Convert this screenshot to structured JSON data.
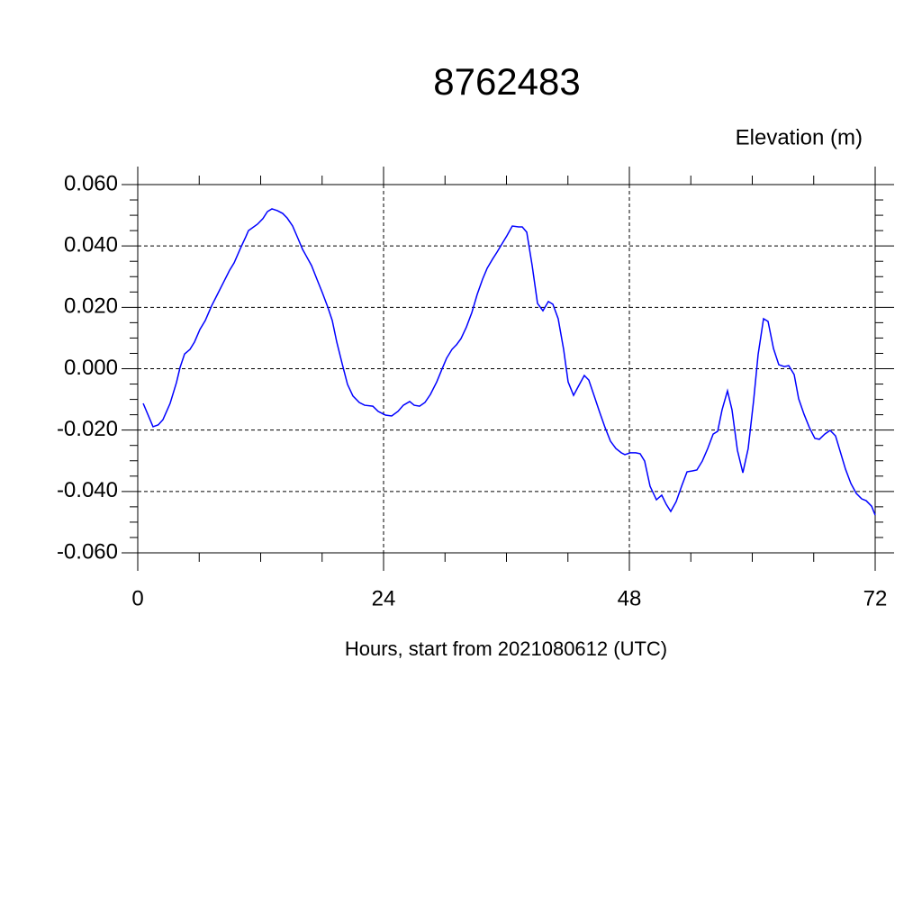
{
  "chart_data": {
    "type": "line",
    "title": "8762483",
    "ylabel": "Elevation (m)",
    "xlabel": "Hours, start from 2021080612 (UTC)",
    "color": "#0000ff",
    "grid": true,
    "xlim": [
      0,
      72
    ],
    "xticks": [
      0,
      24,
      48,
      72
    ],
    "ylim": [
      -0.06,
      0.06
    ],
    "yticks": [
      {
        "value": -0.06,
        "label": "-0.060"
      },
      {
        "value": -0.04,
        "label": "-0.040"
      },
      {
        "value": -0.02,
        "label": "-0.020"
      },
      {
        "value": 0,
        "label": "0.000"
      },
      {
        "value": 0.02,
        "label": "0.020"
      },
      {
        "value": 0.04,
        "label": "0.040"
      },
      {
        "value": 0.06,
        "label": "0.060"
      }
    ],
    "x": [
      0.53,
      1.49,
      2.0,
      2.46,
      3.16,
      3.78,
      4.13,
      4.57,
      5.1,
      5.54,
      6.07,
      6.59,
      7.2,
      7.82,
      8.35,
      8.97,
      9.41,
      10.02,
      10.55,
      10.81,
      11.69,
      12.22,
      12.66,
      13.1,
      13.63,
      14.15,
      14.59,
      15.12,
      15.65,
      16.09,
      16.44,
      16.97,
      17.49,
      18.02,
      18.55,
      18.99,
      19.43,
      19.96,
      20.48,
      21.01,
      21.63,
      22.15,
      22.95,
      23.47,
      24.18,
      24.79,
      25.41,
      25.93,
      26.55,
      26.99,
      27.52,
      28.04,
      28.57,
      29.19,
      29.71,
      30.15,
      30.68,
      31.12,
      31.56,
      32.09,
      32.62,
      33.14,
      33.67,
      34.11,
      34.64,
      35.08,
      35.6,
      36.04,
      36.57,
      37.19,
      37.54,
      37.98,
      38.51,
      39.03,
      39.56,
      40.09,
      40.53,
      41.05,
      41.58,
      42.02,
      42.55,
      43.08,
      43.6,
      44.04,
      44.57,
      45.1,
      45.63,
      46.15,
      46.68,
      47.21,
      47.56,
      48.09,
      48.62,
      49.05,
      49.49,
      50.02,
      50.64,
      51.16,
      51.6,
      52.04,
      52.57,
      53.1,
      53.63,
      54.15,
      54.59,
      55.12,
      55.65,
      56.18,
      56.62,
      57.05,
      57.58,
      58.02,
      58.55,
      59.08,
      59.6,
      60.13,
      60.57,
      61.1,
      61.54,
      62.07,
      62.59,
      63.12,
      63.56,
      64.09,
      64.53,
      65.05,
      65.58,
      66.11,
      66.55,
      67.08,
      67.6,
      68.13,
      68.57,
      69.1,
      69.63,
      70.15,
      70.68,
      71.12,
      71.65,
      72.0
    ],
    "values": [
      -0.0113,
      -0.0189,
      -0.0183,
      -0.0166,
      -0.0113,
      -0.0045,
      0.0004,
      0.0048,
      0.0063,
      0.0087,
      0.0128,
      0.0157,
      0.0204,
      0.0245,
      0.028,
      0.0321,
      0.0345,
      0.0392,
      0.043,
      0.045,
      0.0471,
      0.0489,
      0.0512,
      0.0521,
      0.0515,
      0.0506,
      0.0491,
      0.0465,
      0.0424,
      0.0389,
      0.0368,
      0.0336,
      0.0292,
      0.0248,
      0.0201,
      0.0157,
      0.0087,
      0.0016,
      -0.0051,
      -0.0089,
      -0.011,
      -0.0119,
      -0.0122,
      -0.0139,
      -0.0151,
      -0.0154,
      -0.0139,
      -0.0119,
      -0.0107,
      -0.0119,
      -0.0122,
      -0.011,
      -0.0084,
      -0.0043,
      -0.0001,
      0.0034,
      0.0063,
      0.0078,
      0.0098,
      0.0136,
      0.0183,
      0.0242,
      0.0292,
      0.0327,
      0.0357,
      0.038,
      0.0409,
      0.0433,
      0.0465,
      0.0462,
      0.0462,
      0.0445,
      0.0336,
      0.0213,
      0.0189,
      0.0219,
      0.021,
      0.0163,
      0.0063,
      -0.0043,
      -0.0087,
      -0.0054,
      -0.0022,
      -0.0037,
      -0.0089,
      -0.0142,
      -0.0192,
      -0.0236,
      -0.026,
      -0.0274,
      -0.028,
      -0.0274,
      -0.0274,
      -0.0277,
      -0.0301,
      -0.0383,
      -0.0427,
      -0.0412,
      -0.0442,
      -0.0465,
      -0.0433,
      -0.0383,
      -0.0336,
      -0.0333,
      -0.033,
      -0.0301,
      -0.026,
      -0.0213,
      -0.0204,
      -0.0134,
      -0.0072,
      -0.0134,
      -0.0266,
      -0.0339,
      -0.026,
      -0.0104,
      0.0046,
      0.0163,
      0.0154,
      0.0066,
      0.0013,
      0.0007,
      0.001,
      -0.0019,
      -0.0098,
      -0.0148,
      -0.0192,
      -0.0227,
      -0.023,
      -0.0213,
      -0.0201,
      -0.0219,
      -0.0268,
      -0.0327,
      -0.0374,
      -0.0406,
      -0.0424,
      -0.043,
      -0.0448,
      -0.0477
    ]
  }
}
